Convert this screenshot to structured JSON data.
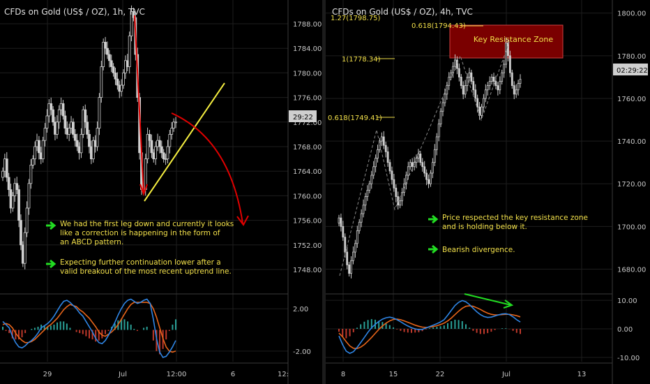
{
  "colors": {
    "background": "#000000",
    "candle": "#cfcfcf",
    "grid": "#1e1e1e",
    "axis_text": "#c8c8c8",
    "annotation_text": "#f2e04a",
    "arrow_red": "#e00000",
    "trendline_yellow": "#f5ee40",
    "arrow_green": "#22dd22",
    "macd_blue": "#2f86e6",
    "macd_orange": "#e8651a",
    "hist_green": "#2aa198",
    "hist_red": "#c0392b",
    "resistance_fill": "#7a0000",
    "resistance_border": "#d04040"
  },
  "chart_data": [
    {
      "type": "line",
      "chart_kind": "candlestick",
      "title": "CFDs on Gold (US$ / OZ), 1h, TVC",
      "price_axis": {
        "ticks": [
          "1788.00",
          "1784.00",
          "1780.00",
          "1776.00",
          "1772.00",
          "1768.00",
          "1764.00",
          "1760.00",
          "1756.00",
          "1752.00",
          "1748.00"
        ],
        "tick_values": [
          1788,
          1784,
          1780,
          1776,
          1772,
          1768,
          1764,
          1760,
          1756,
          1752,
          1748
        ],
        "ylim": [
          1745.5,
          1790.5
        ]
      },
      "current_price_label": "29:22",
      "time_axis": {
        "ticks": [
          "29",
          "Jul",
          "12:00",
          "6",
          "12:"
        ]
      },
      "price_series": [
        1764,
        1766,
        1763,
        1761,
        1758,
        1760,
        1762,
        1761,
        1756,
        1752,
        1749,
        1754,
        1758,
        1762,
        1765,
        1766,
        1768,
        1769,
        1767,
        1766,
        1769,
        1771,
        1773,
        1775,
        1774,
        1772,
        1770,
        1772,
        1774,
        1775,
        1773,
        1771,
        1770,
        1771,
        1772,
        1770,
        1769,
        1768,
        1767,
        1770,
        1774,
        1772,
        1770,
        1768,
        1766,
        1769,
        1768,
        1771,
        1776,
        1781,
        1785,
        1784,
        1783,
        1782,
        1781,
        1780,
        1779,
        1778,
        1777,
        1778,
        1780,
        1782,
        1781,
        1786,
        1790,
        1789,
        1783,
        1776,
        1767,
        1761,
        1761,
        1766,
        1770,
        1769,
        1767,
        1766,
        1768,
        1769,
        1768,
        1767,
        1766,
        1766,
        1768,
        1770,
        1771,
        1772,
        1772
      ],
      "annotations": [
        "We had the first leg down and currently it looks",
        "like a correction is happening in the form of",
        "an ABCD pattern.",
        "Expecting further continuation lower after a",
        "valid breakout of the most recent uptrend line."
      ],
      "macd_panel": {
        "ticks": [
          "2.00",
          "-2.00"
        ],
        "tick_values": [
          2,
          -2
        ],
        "ylim": [
          -3,
          3.2
        ],
        "macd": [
          0.8,
          0.5,
          0.2,
          -0.6,
          -1.2,
          -1.6,
          -1.7,
          -1.5,
          -1.2,
          -1.0,
          -0.7,
          -0.3,
          0.2,
          0.4,
          0.6,
          0.9,
          1.3,
          1.8,
          2.3,
          2.7,
          2.8,
          2.6,
          2.3,
          2.0,
          1.6,
          1.3,
          0.8,
          0.3,
          -0.2,
          -0.8,
          -1.2,
          -1.3,
          -1.0,
          -0.5,
          0.1,
          0.7,
          1.4,
          2.0,
          2.5,
          2.8,
          2.9,
          2.7,
          2.5,
          2.6,
          2.8,
          2.9,
          2.5,
          1.0,
          -0.8,
          -2.1,
          -2.6,
          -2.5,
          -2.1,
          -1.6,
          -1.0
        ],
        "signal": [
          0.5,
          0.6,
          0.5,
          0.2,
          -0.3,
          -0.7,
          -1.0,
          -1.2,
          -1.2,
          -1.1,
          -0.9,
          -0.6,
          -0.3,
          0.0,
          0.3,
          0.5,
          0.8,
          1.1,
          1.5,
          1.9,
          2.2,
          2.4,
          2.3,
          2.2,
          1.9,
          1.7,
          1.4,
          1.1,
          0.7,
          0.3,
          -0.2,
          -0.5,
          -0.6,
          -0.4,
          -0.2,
          0.1,
          0.5,
          1.0,
          1.5,
          2.0,
          2.4,
          2.6,
          2.6,
          2.6,
          2.6,
          2.6,
          2.5,
          2.0,
          1.2,
          0.2,
          -0.8,
          -1.6,
          -2.0,
          -2.1,
          -2.0
        ]
      }
    },
    {
      "type": "line",
      "chart_kind": "candlestick",
      "title": "CFDs on Gold (US$ / OZ), 4h, TVC",
      "price_axis": {
        "ticks": [
          "1800.00",
          "1780.00",
          "1760.00",
          "1740.00",
          "1720.00",
          "1700.00",
          "1680.00"
        ],
        "tick_values": [
          1800,
          1780,
          1760,
          1740,
          1720,
          1700,
          1680
        ],
        "ylim": [
          1671,
          1803.5
        ]
      },
      "current_price_label": "02:29:22",
      "time_axis": {
        "ticks": [
          "8",
          "15",
          "22",
          "Jul",
          "13"
        ]
      },
      "price_series": [
        1704,
        1700,
        1695,
        1688,
        1682,
        1678,
        1684,
        1688,
        1692,
        1698,
        1702,
        1706,
        1710,
        1714,
        1717,
        1720,
        1724,
        1728,
        1732,
        1736,
        1740,
        1742,
        1738,
        1735,
        1730,
        1726,
        1722,
        1718,
        1714,
        1710,
        1712,
        1716,
        1720,
        1724,
        1728,
        1730,
        1728,
        1730,
        1732,
        1734,
        1730,
        1728,
        1725,
        1722,
        1720,
        1725,
        1730,
        1736,
        1742,
        1748,
        1754,
        1758,
        1762,
        1766,
        1770,
        1772,
        1775,
        1778,
        1774,
        1770,
        1766,
        1762,
        1766,
        1770,
        1772,
        1768,
        1764,
        1760,
        1756,
        1752,
        1756,
        1760,
        1764,
        1766,
        1768,
        1770,
        1768,
        1766,
        1764,
        1768,
        1772,
        1776,
        1786,
        1780,
        1772,
        1766,
        1762,
        1764,
        1767,
        1769
      ],
      "fib_levels": [
        {
          "label": "1.27(1798.75)",
          "value": 1798.75
        },
        {
          "label": "0.618(1794.43)",
          "value": 1794.43
        },
        {
          "label": "1(1778.34)",
          "value": 1778.34
        },
        {
          "label": "0.618(1749.41)",
          "value": 1749.41
        }
      ],
      "resistance_zone": {
        "label": "Key Resistance Zone",
        "range": [
          1778.8,
          1794.43
        ]
      },
      "annotations": [
        "Price respected the key resistance zone",
        "and is holding below it.",
        "Bearish divergence."
      ],
      "macd_panel": {
        "ticks": [
          "10.00",
          "0.00",
          "-10.00"
        ],
        "tick_values": [
          10,
          0,
          -10
        ],
        "ylim": [
          -11.5,
          11.5
        ],
        "macd": [
          -2.5,
          -5.5,
          -7.8,
          -8.6,
          -8.0,
          -6.5,
          -4.8,
          -3.0,
          -1.2,
          0.4,
          1.6,
          2.6,
          3.4,
          3.9,
          4.1,
          3.8,
          3.2,
          2.5,
          1.7,
          1.0,
          0.4,
          0.0,
          -0.3,
          -0.2,
          0.3,
          0.8,
          1.3,
          1.8,
          2.4,
          3.2,
          4.8,
          6.5,
          8.2,
          9.3,
          9.9,
          9.5,
          8.5,
          7.2,
          6.0,
          5.0,
          4.3,
          4.0,
          4.1,
          4.5,
          4.9,
          5.2,
          5.3,
          5.0,
          4.2,
          3.2,
          2.4
        ],
        "signal": [
          -1.5,
          -2.8,
          -4.5,
          -6.0,
          -6.8,
          -6.9,
          -6.4,
          -5.5,
          -4.3,
          -3.0,
          -1.6,
          -0.2,
          1.0,
          2.0,
          2.8,
          3.3,
          3.4,
          3.2,
          2.8,
          2.3,
          1.8,
          1.3,
          0.9,
          0.6,
          0.5,
          0.6,
          0.8,
          1.1,
          1.5,
          2.0,
          2.8,
          3.8,
          5.0,
          6.2,
          7.2,
          7.9,
          8.1,
          7.9,
          7.4,
          6.8,
          6.1,
          5.5,
          5.1,
          4.9,
          4.9,
          5.0,
          5.1,
          5.1,
          4.9,
          4.6,
          4.2
        ]
      }
    }
  ]
}
